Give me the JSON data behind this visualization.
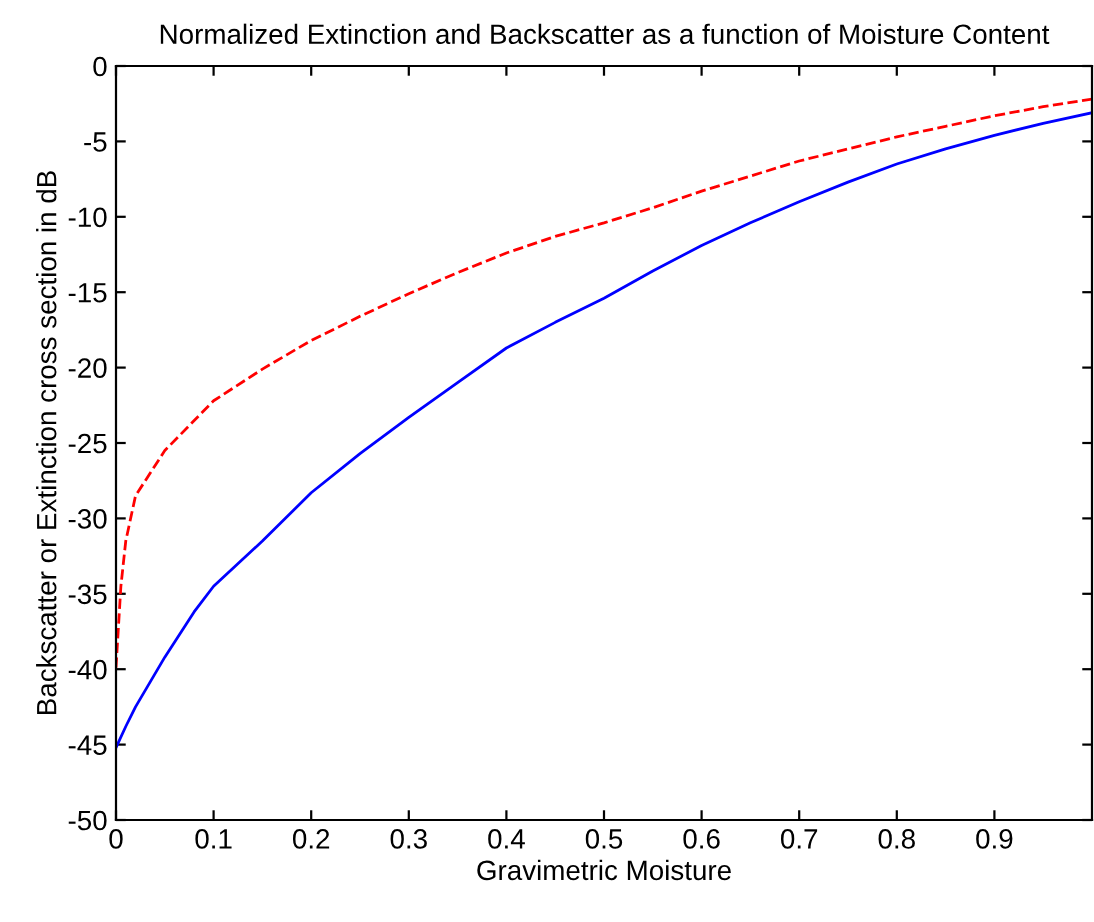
{
  "chart_data": {
    "type": "line",
    "title": "Normalized Extinction and Backscatter as a function of Moisture Content",
    "xlabel": "Gravimetric Moisture",
    "ylabel": "Backscatter or Extinction cross section in dB",
    "xlim": [
      0,
      1
    ],
    "xticks": [
      0,
      0.1,
      0.2,
      0.3,
      0.4,
      0.5,
      0.6,
      0.7,
      0.8,
      0.9
    ],
    "ylim": [
      -50,
      0
    ],
    "yticks": [
      -50,
      -45,
      -40,
      -35,
      -30,
      -25,
      -20,
      -15,
      -10,
      -5,
      0
    ],
    "grid": false,
    "legend": false,
    "series": [
      {
        "color": "#0000ff",
        "line_style": "solid",
        "x": [
          0,
          0.01,
          0.02,
          0.05,
          0.08,
          0.1,
          0.15,
          0.2,
          0.25,
          0.3,
          0.35,
          0.4,
          0.45,
          0.5,
          0.55,
          0.6,
          0.65,
          0.7,
          0.75,
          0.8,
          0.85,
          0.9,
          0.95,
          1.0
        ],
        "values": [
          -45.2,
          -43.8,
          -42.5,
          -39.2,
          -36.2,
          -34.5,
          -31.5,
          -28.3,
          -25.7,
          -23.3,
          -21.0,
          -18.7,
          -17.0,
          -15.4,
          -13.6,
          -11.9,
          -10.4,
          -9.0,
          -7.7,
          -6.5,
          -5.5,
          -4.6,
          -3.8,
          -3.1
        ]
      },
      {
        "color": "#ff0000",
        "line_style": "dashed",
        "x": [
          0,
          0.005,
          0.01,
          0.02,
          0.05,
          0.1,
          0.15,
          0.2,
          0.25,
          0.3,
          0.35,
          0.4,
          0.45,
          0.5,
          0.55,
          0.6,
          0.65,
          0.7,
          0.75,
          0.8,
          0.85,
          0.9,
          0.95,
          1.0
        ],
        "values": [
          -39.9,
          -34.5,
          -31.5,
          -28.5,
          -25.5,
          -22.2,
          -20.1,
          -18.2,
          -16.6,
          -15.1,
          -13.7,
          -12.4,
          -11.3,
          -10.4,
          -9.4,
          -8.3,
          -7.3,
          -6.3,
          -5.5,
          -4.7,
          -4.0,
          -3.3,
          -2.7,
          -2.2
        ]
      }
    ]
  }
}
